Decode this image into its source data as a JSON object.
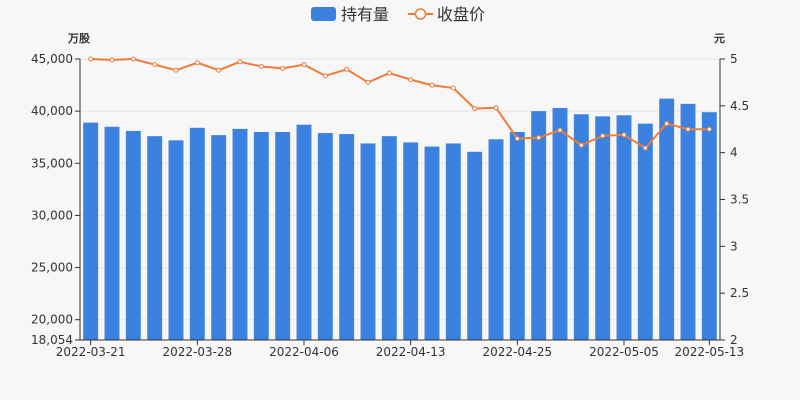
{
  "chart_data": {
    "type": "bar+line",
    "legend": [
      {
        "name": "持有量",
        "color": "#3b82e0",
        "type": "bar"
      },
      {
        "name": "收盘价",
        "color": "#ee7c3a",
        "type": "line"
      }
    ],
    "legend_position": "top-center",
    "left_axis": {
      "unit": "万股",
      "min": 18054,
      "max": 45000,
      "ticks": [
        "45,000",
        "40,000",
        "35,000",
        "30,000",
        "25,000",
        "20,000",
        "18,054"
      ],
      "tick_values": [
        45000,
        40000,
        35000,
        30000,
        25000,
        20000,
        18054
      ]
    },
    "right_axis": {
      "unit": "元",
      "min": 2,
      "max": 5,
      "ticks": [
        "5",
        "4.5",
        "4",
        "3.5",
        "3",
        "2.5",
        "2"
      ],
      "tick_values": [
        5,
        4.5,
        4,
        3.5,
        3,
        2.5,
        2
      ]
    },
    "x_ticks": [
      {
        "label": "2022-03-21",
        "index": 0
      },
      {
        "label": "2022-03-28",
        "index": 5
      },
      {
        "label": "2022-04-06",
        "index": 10
      },
      {
        "label": "2022-04-13",
        "index": 15
      },
      {
        "label": "2022-04-25",
        "index": 20
      },
      {
        "label": "2022-05-05",
        "index": 25
      },
      {
        "label": "2022-05-13",
        "index": 29
      }
    ],
    "x_count": 30,
    "grid": "horizontal",
    "series": [
      {
        "name": "持有量",
        "axis": "left",
        "values": [
          38900,
          38500,
          38100,
          37600,
          37200,
          38400,
          37700,
          38300,
          38000,
          38000,
          38700,
          37900,
          37800,
          36900,
          37600,
          37000,
          36600,
          36900,
          36100,
          37300,
          38000,
          40000,
          40300,
          39700,
          39500,
          39600,
          38800,
          41200,
          40700,
          39900
        ]
      },
      {
        "name": "收盘价",
        "axis": "right",
        "values": [
          5.0,
          4.99,
          5.0,
          4.94,
          4.88,
          4.96,
          4.88,
          4.97,
          4.92,
          4.9,
          4.94,
          4.82,
          4.89,
          4.75,
          4.85,
          4.78,
          4.72,
          4.69,
          4.47,
          4.48,
          4.15,
          4.16,
          4.24,
          4.08,
          4.18,
          4.19,
          4.05,
          4.31,
          4.25,
          4.25
        ]
      }
    ]
  }
}
